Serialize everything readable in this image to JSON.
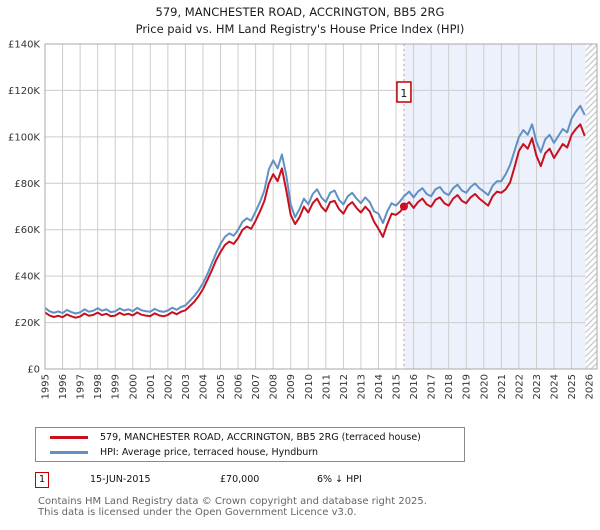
{
  "header": {
    "title": "579, MANCHESTER ROAD, ACCRINGTON, BB5 2RG",
    "subtitle": "Price paid vs. HM Land Registry's House Price Index (HPI)"
  },
  "chart_data": {
    "type": "line",
    "title": "579, MANCHESTER ROAD, ACCRINGTON, BB5 2RG",
    "subtitle": "Price paid vs. HM Land Registry's House Price Index (HPI)",
    "y_unit": "GBP thousands",
    "ylim": [
      0,
      140
    ],
    "yticks": [
      0,
      20,
      40,
      60,
      80,
      100,
      120,
      140
    ],
    "ytick_labels": [
      "£0",
      "£20K",
      "£40K",
      "£60K",
      "£80K",
      "£100K",
      "£120K",
      "£140K"
    ],
    "xlim": [
      1995,
      2026.45
    ],
    "xticks": [
      1995,
      1996,
      1997,
      1998,
      1999,
      2000,
      2001,
      2002,
      2003,
      2004,
      2005,
      2006,
      2007,
      2008,
      2009,
      2010,
      2011,
      2012,
      2013,
      2014,
      2015,
      2016,
      2017,
      2018,
      2019,
      2020,
      2021,
      2022,
      2023,
      2024,
      2025,
      2026
    ],
    "grid": true,
    "legend_position": "bottom",
    "shade_from": 2015.45,
    "hatch_from": 2025.8,
    "marker_line": {
      "x": 2015.45,
      "style": "dotted",
      "color": "#ee8888"
    },
    "sale_point": {
      "label": "1",
      "x": 2015.45,
      "y": 70,
      "price_label": "£70,000"
    },
    "series": [
      {
        "key": "price-paid",
        "name": "579, MANCHESTER ROAD, ACCRINGTON, BB5 2RG (terraced house)",
        "color": "#c8101e",
        "points": [
          [
            1995.0,
            24.4
          ],
          [
            1995.25,
            23.1
          ],
          [
            1995.5,
            22.4
          ],
          [
            1995.75,
            22.9
          ],
          [
            1996.0,
            22.3
          ],
          [
            1996.25,
            23.5
          ],
          [
            1996.5,
            22.7
          ],
          [
            1996.75,
            22.1
          ],
          [
            1997.0,
            22.6
          ],
          [
            1997.25,
            23.9
          ],
          [
            1997.5,
            22.9
          ],
          [
            1997.75,
            23.3
          ],
          [
            1998.0,
            24.3
          ],
          [
            1998.25,
            23.2
          ],
          [
            1998.5,
            23.8
          ],
          [
            1998.75,
            22.7
          ],
          [
            1999.0,
            23.0
          ],
          [
            1999.25,
            24.2
          ],
          [
            1999.5,
            23.3
          ],
          [
            1999.75,
            23.8
          ],
          [
            2000.0,
            23.1
          ],
          [
            2000.25,
            24.4
          ],
          [
            2000.5,
            23.4
          ],
          [
            2000.75,
            23.0
          ],
          [
            2001.0,
            22.8
          ],
          [
            2001.25,
            24.0
          ],
          [
            2001.5,
            23.1
          ],
          [
            2001.75,
            22.7
          ],
          [
            2002.0,
            23.3
          ],
          [
            2002.25,
            24.5
          ],
          [
            2002.5,
            23.6
          ],
          [
            2002.75,
            24.7
          ],
          [
            2003.0,
            25.3
          ],
          [
            2003.25,
            27.1
          ],
          [
            2003.5,
            28.9
          ],
          [
            2003.75,
            31.4
          ],
          [
            2004.0,
            34.4
          ],
          [
            2004.25,
            38.4
          ],
          [
            2004.5,
            42.4
          ],
          [
            2004.75,
            46.9
          ],
          [
            2005.0,
            50.4
          ],
          [
            2005.25,
            53.4
          ],
          [
            2005.5,
            54.9
          ],
          [
            2005.75,
            53.9
          ],
          [
            2006.0,
            56.4
          ],
          [
            2006.25,
            59.9
          ],
          [
            2006.5,
            61.4
          ],
          [
            2006.75,
            60.4
          ],
          [
            2007.0,
            63.9
          ],
          [
            2007.25,
            67.9
          ],
          [
            2007.5,
            72.4
          ],
          [
            2007.75,
            79.9
          ],
          [
            2008.0,
            83.9
          ],
          [
            2008.25,
            80.9
          ],
          [
            2008.5,
            86.4
          ],
          [
            2008.75,
            76.9
          ],
          [
            2009.0,
            66.4
          ],
          [
            2009.25,
            62.4
          ],
          [
            2009.5,
            65.4
          ],
          [
            2009.75,
            69.9
          ],
          [
            2010.0,
            67.4
          ],
          [
            2010.25,
            71.4
          ],
          [
            2010.5,
            73.4
          ],
          [
            2010.75,
            69.9
          ],
          [
            2011.0,
            67.9
          ],
          [
            2011.25,
            71.9
          ],
          [
            2011.5,
            72.4
          ],
          [
            2011.75,
            68.9
          ],
          [
            2012.0,
            66.9
          ],
          [
            2012.25,
            70.4
          ],
          [
            2012.5,
            71.9
          ],
          [
            2012.75,
            69.4
          ],
          [
            2013.0,
            67.4
          ],
          [
            2013.25,
            69.9
          ],
          [
            2013.5,
            67.9
          ],
          [
            2013.75,
            63.4
          ],
          [
            2014.0,
            60.4
          ],
          [
            2014.25,
            56.9
          ],
          [
            2014.5,
            62.4
          ],
          [
            2014.75,
            66.9
          ],
          [
            2015.0,
            66.4
          ],
          [
            2015.25,
            67.9
          ],
          [
            2015.45,
            70.0
          ],
          [
            2015.75,
            71.9
          ],
          [
            2016.0,
            69.4
          ],
          [
            2016.25,
            71.9
          ],
          [
            2016.5,
            73.4
          ],
          [
            2016.75,
            70.9
          ],
          [
            2017.0,
            69.9
          ],
          [
            2017.25,
            72.9
          ],
          [
            2017.5,
            73.9
          ],
          [
            2017.75,
            71.4
          ],
          [
            2018.0,
            70.4
          ],
          [
            2018.25,
            73.4
          ],
          [
            2018.5,
            74.9
          ],
          [
            2018.75,
            72.4
          ],
          [
            2019.0,
            71.4
          ],
          [
            2019.25,
            73.9
          ],
          [
            2019.5,
            75.4
          ],
          [
            2019.75,
            73.4
          ],
          [
            2020.0,
            71.9
          ],
          [
            2020.25,
            70.4
          ],
          [
            2020.5,
            74.4
          ],
          [
            2020.75,
            76.4
          ],
          [
            2021.0,
            75.9
          ],
          [
            2021.25,
            77.4
          ],
          [
            2021.5,
            80.4
          ],
          [
            2021.75,
            86.9
          ],
          [
            2022.0,
            93.9
          ],
          [
            2022.25,
            96.9
          ],
          [
            2022.5,
            94.9
          ],
          [
            2022.75,
            99.4
          ],
          [
            2023.0,
            91.9
          ],
          [
            2023.25,
            87.4
          ],
          [
            2023.5,
            92.9
          ],
          [
            2023.75,
            94.9
          ],
          [
            2024.0,
            90.9
          ],
          [
            2024.25,
            93.9
          ],
          [
            2024.5,
            96.9
          ],
          [
            2024.75,
            95.4
          ],
          [
            2025.0,
            100.9
          ],
          [
            2025.25,
            103.4
          ],
          [
            2025.5,
            105.4
          ],
          [
            2025.75,
            100.4
          ]
        ]
      },
      {
        "key": "hpi",
        "name": "HPI: Average price, terraced house, Hyndburn",
        "color": "#6090c4",
        "points": [
          [
            1995.0,
            26.3
          ],
          [
            1995.25,
            24.9
          ],
          [
            1995.5,
            24.2
          ],
          [
            1995.75,
            24.8
          ],
          [
            1996.0,
            24.1
          ],
          [
            1996.25,
            25.4
          ],
          [
            1996.5,
            24.5
          ],
          [
            1996.75,
            23.9
          ],
          [
            1997.0,
            24.4
          ],
          [
            1997.25,
            25.7
          ],
          [
            1997.5,
            24.7
          ],
          [
            1997.75,
            25.1
          ],
          [
            1998.0,
            26.2
          ],
          [
            1998.25,
            25.1
          ],
          [
            1998.5,
            25.7
          ],
          [
            1998.75,
            24.5
          ],
          [
            1999.0,
            24.8
          ],
          [
            1999.25,
            26.1
          ],
          [
            1999.5,
            25.2
          ],
          [
            1999.75,
            25.7
          ],
          [
            2000.0,
            24.9
          ],
          [
            2000.25,
            26.3
          ],
          [
            2000.5,
            25.3
          ],
          [
            2000.75,
            24.9
          ],
          [
            2001.0,
            24.7
          ],
          [
            2001.25,
            25.9
          ],
          [
            2001.5,
            25.0
          ],
          [
            2001.75,
            24.6
          ],
          [
            2002.0,
            25.2
          ],
          [
            2002.25,
            26.4
          ],
          [
            2002.5,
            25.5
          ],
          [
            2002.75,
            26.7
          ],
          [
            2003.0,
            27.4
          ],
          [
            2003.25,
            29.4
          ],
          [
            2003.5,
            31.4
          ],
          [
            2003.75,
            33.9
          ],
          [
            2004.0,
            36.9
          ],
          [
            2004.25,
            40.9
          ],
          [
            2004.5,
            45.4
          ],
          [
            2004.75,
            49.9
          ],
          [
            2005.0,
            53.9
          ],
          [
            2005.25,
            56.9
          ],
          [
            2005.5,
            58.4
          ],
          [
            2005.75,
            57.4
          ],
          [
            2006.0,
            59.9
          ],
          [
            2006.25,
            63.4
          ],
          [
            2006.5,
            64.9
          ],
          [
            2006.75,
            63.9
          ],
          [
            2007.0,
            67.9
          ],
          [
            2007.25,
            71.9
          ],
          [
            2007.5,
            76.9
          ],
          [
            2007.75,
            85.9
          ],
          [
            2008.0,
            89.9
          ],
          [
            2008.25,
            86.4
          ],
          [
            2008.5,
            92.4
          ],
          [
            2008.75,
            83.4
          ],
          [
            2009.0,
            70.9
          ],
          [
            2009.25,
            65.4
          ],
          [
            2009.5,
            68.9
          ],
          [
            2009.75,
            73.4
          ],
          [
            2010.0,
            70.9
          ],
          [
            2010.25,
            75.4
          ],
          [
            2010.5,
            77.4
          ],
          [
            2010.75,
            73.9
          ],
          [
            2011.0,
            71.9
          ],
          [
            2011.25,
            75.9
          ],
          [
            2011.5,
            76.9
          ],
          [
            2011.75,
            72.9
          ],
          [
            2012.0,
            70.9
          ],
          [
            2012.25,
            74.4
          ],
          [
            2012.5,
            75.9
          ],
          [
            2012.75,
            73.4
          ],
          [
            2013.0,
            71.4
          ],
          [
            2013.25,
            73.9
          ],
          [
            2013.5,
            71.9
          ],
          [
            2013.75,
            67.9
          ],
          [
            2014.0,
            66.9
          ],
          [
            2014.25,
            62.9
          ],
          [
            2014.5,
            67.9
          ],
          [
            2014.75,
            71.4
          ],
          [
            2015.0,
            70.4
          ],
          [
            2015.25,
            72.4
          ],
          [
            2015.45,
            74.4
          ],
          [
            2015.75,
            76.4
          ],
          [
            2016.0,
            73.9
          ],
          [
            2016.25,
            76.4
          ],
          [
            2016.5,
            77.9
          ],
          [
            2016.75,
            75.4
          ],
          [
            2017.0,
            74.4
          ],
          [
            2017.25,
            77.4
          ],
          [
            2017.5,
            78.4
          ],
          [
            2017.75,
            75.9
          ],
          [
            2018.0,
            74.9
          ],
          [
            2018.25,
            77.9
          ],
          [
            2018.5,
            79.4
          ],
          [
            2018.75,
            76.9
          ],
          [
            2019.0,
            75.9
          ],
          [
            2019.25,
            78.4
          ],
          [
            2019.5,
            79.9
          ],
          [
            2019.75,
            77.9
          ],
          [
            2020.0,
            76.4
          ],
          [
            2020.25,
            74.9
          ],
          [
            2020.5,
            78.9
          ],
          [
            2020.75,
            80.9
          ],
          [
            2021.0,
            80.9
          ],
          [
            2021.25,
            83.9
          ],
          [
            2021.5,
            87.9
          ],
          [
            2021.75,
            93.9
          ],
          [
            2022.0,
            99.9
          ],
          [
            2022.25,
            102.9
          ],
          [
            2022.5,
            100.9
          ],
          [
            2022.75,
            105.4
          ],
          [
            2023.0,
            97.9
          ],
          [
            2023.25,
            93.4
          ],
          [
            2023.5,
            98.9
          ],
          [
            2023.75,
            100.9
          ],
          [
            2024.0,
            97.4
          ],
          [
            2024.25,
            100.4
          ],
          [
            2024.5,
            103.4
          ],
          [
            2024.75,
            101.9
          ],
          [
            2025.0,
            107.9
          ],
          [
            2025.25,
            110.9
          ],
          [
            2025.5,
            113.4
          ],
          [
            2025.75,
            109.4
          ]
        ]
      }
    ]
  },
  "legend": {
    "items": [
      {
        "label": "579, MANCHESTER ROAD, ACCRINGTON, BB5 2RG (terraced house)",
        "color": "#c8101e"
      },
      {
        "label": "HPI: Average price, terraced house, Hyndburn",
        "color": "#6090c4"
      }
    ]
  },
  "annotations": [
    {
      "index": "1",
      "date": "15-JUN-2015",
      "price": "£70,000",
      "hpi_delta": "6% ↓ HPI"
    }
  ],
  "footer": {
    "line1": "Contains HM Land Registry data © Crown copyright and database right 2025.",
    "line2": "This data is licensed under the Open Government Licence v3.0."
  },
  "colors": {
    "price_paid_line": "#c8101e",
    "hpi_line": "#6090c4",
    "future_shade": "#edf1fb",
    "grid": "#cccccc",
    "plot_border": "#a8a8a8",
    "dotted_marker_line": "#ee8888",
    "annotation_border": "#c00000",
    "footer_text": "#666666"
  }
}
